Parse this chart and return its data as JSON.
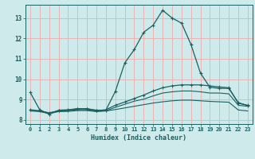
{
  "xlabel": "Humidex (Indice chaleur)",
  "ylabel": "",
  "xlim": [
    -0.5,
    23.5
  ],
  "ylim": [
    7.8,
    13.65
  ],
  "background_color": "#ceeaea",
  "grid_color": "#e8b4b4",
  "line_color": "#1a6060",
  "xticks": [
    0,
    1,
    2,
    3,
    4,
    5,
    6,
    7,
    8,
    9,
    10,
    11,
    12,
    13,
    14,
    15,
    16,
    17,
    18,
    19,
    20,
    21,
    22,
    23
  ],
  "yticks": [
    8,
    9,
    10,
    11,
    12,
    13
  ],
  "series1_x": [
    0,
    1,
    2,
    3,
    4,
    5,
    6,
    7,
    8,
    9,
    10,
    11,
    12,
    13,
    14,
    15,
    16,
    17,
    18,
    19,
    20,
    21,
    22,
    23
  ],
  "series1_y": [
    9.35,
    8.5,
    8.28,
    8.48,
    8.5,
    8.55,
    8.55,
    8.48,
    8.48,
    9.4,
    10.8,
    11.45,
    12.3,
    12.65,
    13.38,
    13.0,
    12.75,
    11.7,
    10.3,
    9.6,
    9.55,
    9.55,
    8.85,
    8.7
  ],
  "series2_x": [
    0,
    1,
    2,
    3,
    4,
    5,
    6,
    7,
    8,
    9,
    10,
    11,
    12,
    13,
    14,
    15,
    16,
    17,
    18,
    19,
    20,
    21,
    22,
    23
  ],
  "series2_y": [
    8.5,
    8.45,
    8.35,
    8.45,
    8.48,
    8.55,
    8.55,
    8.45,
    8.5,
    8.72,
    8.88,
    9.05,
    9.22,
    9.42,
    9.58,
    9.67,
    9.72,
    9.72,
    9.72,
    9.67,
    9.62,
    9.58,
    8.82,
    8.72
  ],
  "series3_x": [
    0,
    1,
    2,
    3,
    4,
    5,
    6,
    7,
    8,
    9,
    10,
    11,
    12,
    13,
    14,
    15,
    16,
    17,
    18,
    19,
    20,
    21,
    22,
    23
  ],
  "series3_y": [
    8.48,
    8.43,
    8.33,
    8.43,
    8.45,
    8.5,
    8.5,
    8.43,
    8.45,
    8.62,
    8.77,
    8.92,
    9.02,
    9.18,
    9.32,
    9.38,
    9.42,
    9.42,
    9.38,
    9.32,
    9.32,
    9.28,
    8.72,
    8.67
  ],
  "series4_x": [
    0,
    1,
    2,
    3,
    4,
    5,
    6,
    7,
    8,
    9,
    10,
    11,
    12,
    13,
    14,
    15,
    16,
    17,
    18,
    19,
    20,
    21,
    22,
    23
  ],
  "series4_y": [
    8.44,
    8.41,
    8.31,
    8.41,
    8.42,
    8.46,
    8.46,
    8.41,
    8.44,
    8.51,
    8.59,
    8.67,
    8.75,
    8.83,
    8.89,
    8.94,
    8.97,
    8.97,
    8.94,
    8.91,
    8.89,
    8.87,
    8.49,
    8.44
  ]
}
